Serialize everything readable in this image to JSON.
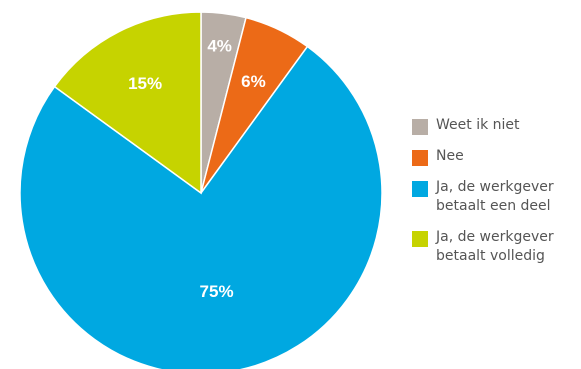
{
  "chart_data": {
    "type": "pie",
    "title": "",
    "slices": [
      {
        "label": "Weet ik niet",
        "legend_lines": [
          "Weet ik niet"
        ],
        "value": 4,
        "display": "4%",
        "color": "#b8aea6"
      },
      {
        "label": "Nee",
        "legend_lines": [
          "Nee"
        ],
        "value": 6,
        "display": "6%",
        "color": "#ec6a17"
      },
      {
        "label": "Ja, de werkgever betaalt een deel",
        "legend_lines": [
          "Ja, de werkgever",
          "betaalt een deel"
        ],
        "value": 75,
        "display": "75%",
        "color": "#00a8e1"
      },
      {
        "label": "Ja, de werkgever betaalt volledig",
        "legend_lines": [
          "Ja, de werkgever",
          "betaalt volledig"
        ],
        "value": 15,
        "display": "15%",
        "color": "#c6d300"
      }
    ],
    "legend_position": "right",
    "start_angle": "12 o'clock",
    "direction": "clockwise"
  }
}
